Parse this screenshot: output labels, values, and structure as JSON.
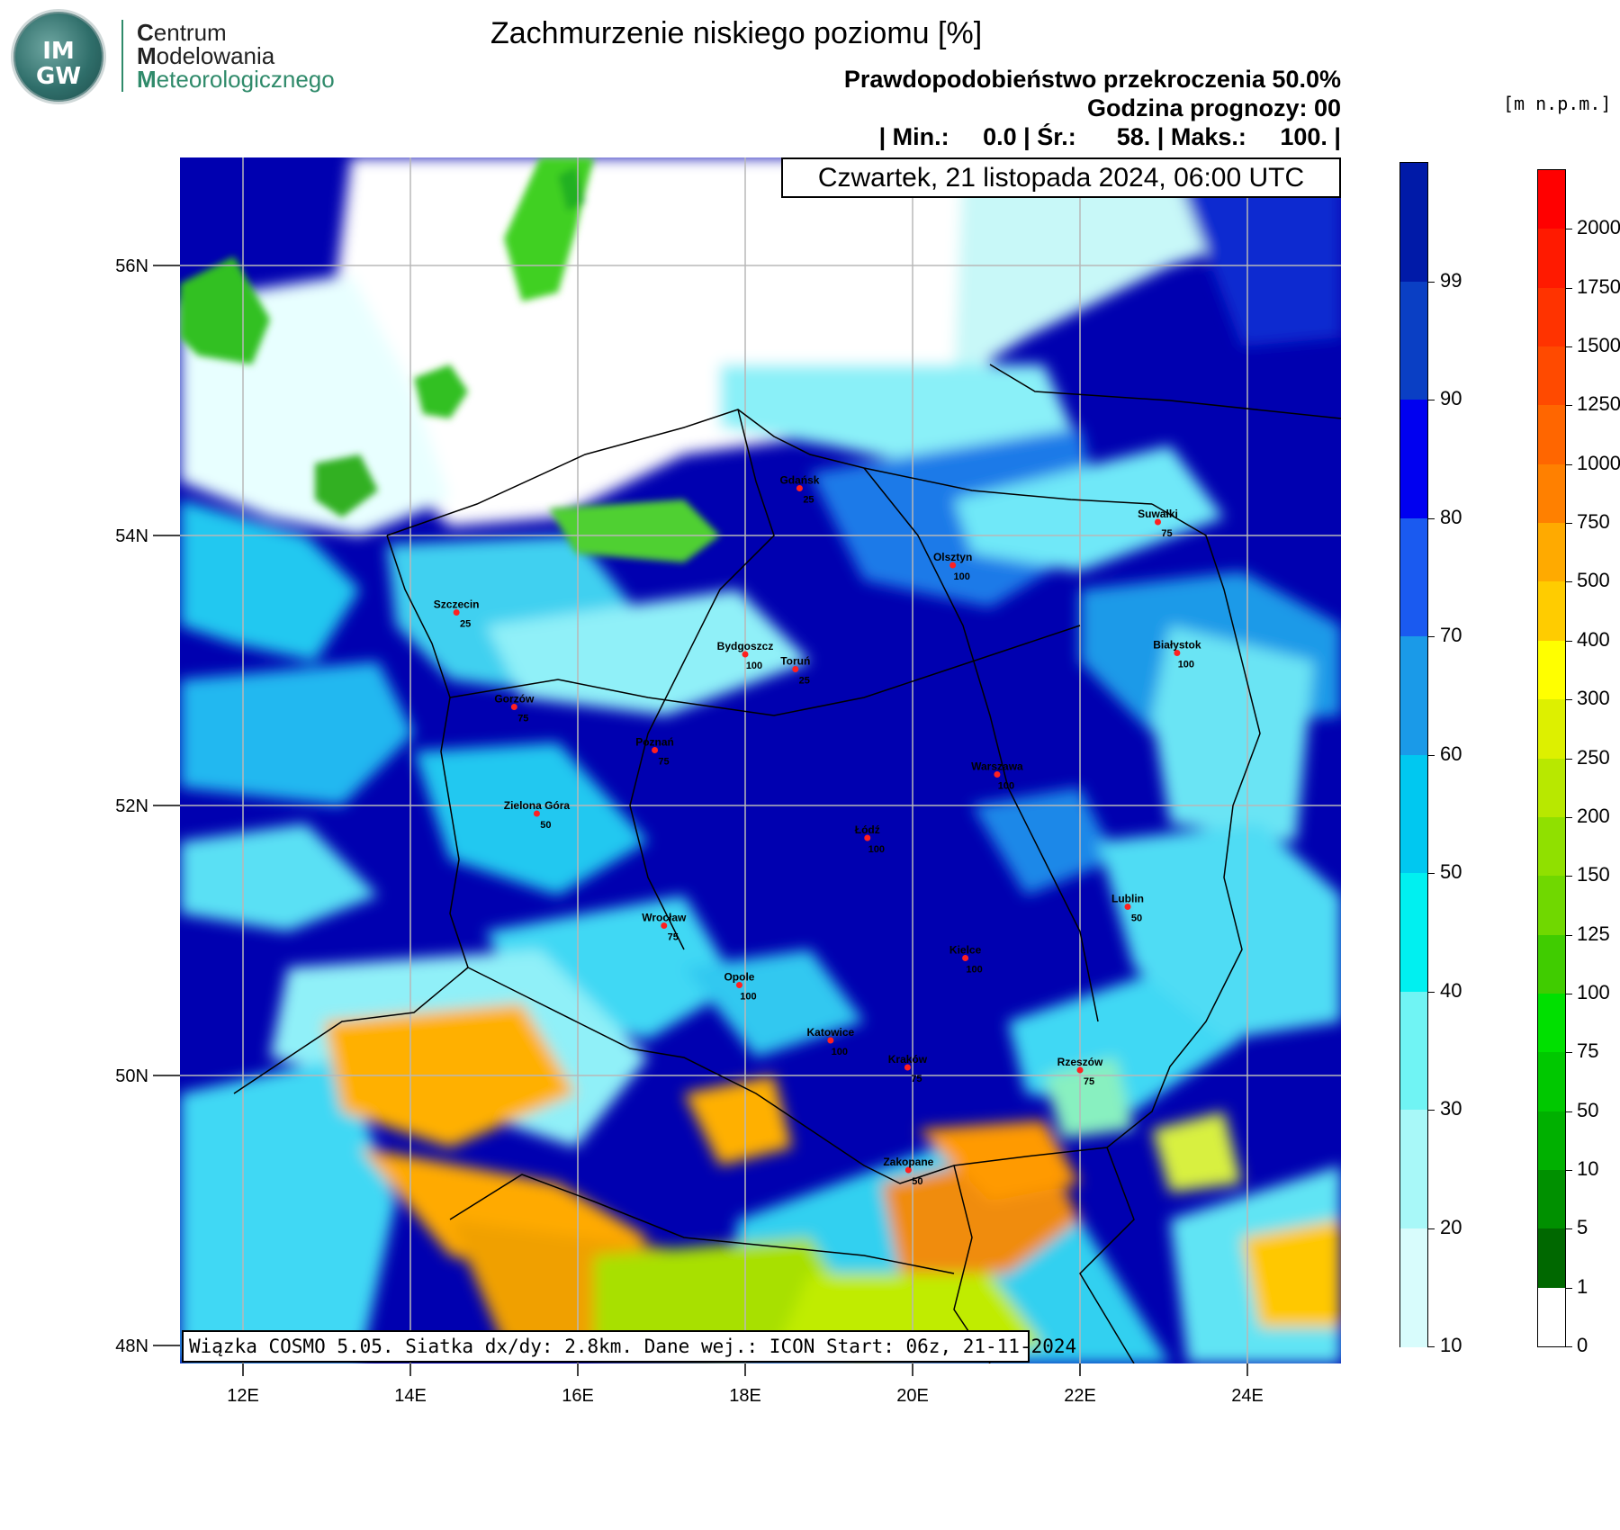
{
  "logo": {
    "abbr_top": "IM",
    "abbr_bottom": "GW",
    "line1_initial": "C",
    "line1_rest": "entrum",
    "line2_initial": "M",
    "line2_rest": "odelowania",
    "line3_initial": "M",
    "line3_rest": "eteorologicznego",
    "accent": "#2f8a6a"
  },
  "title": "Zachmurzenie niskiego poziomu [%]",
  "subtitle_probability": "Prawdopodobieństwo przekroczenia 50.0%",
  "subtitle_hour": "Godzina prognozy: 00",
  "stats": "| Min.:     0.0 | Śr.:      58. | Maks.:     100. |",
  "date_label": "Czwartek, 21 listopada 2024, 06:00 UTC",
  "footer": "Wiązka COSMO 5.05. Siatka dx/dy: 2.8km. Dane wej.: ICON Start: 06z, 21-11-2024",
  "units_label": "[m n.p.m.]",
  "lat_labels": [
    "56N",
    "54N",
    "52N",
    "50N",
    "48N"
  ],
  "lon_labels": [
    "12E",
    "14E",
    "16E",
    "18E",
    "20E",
    "22E",
    "24E"
  ],
  "cloud_colorbar": {
    "labels": [
      "99",
      "90",
      "80",
      "70",
      "60",
      "50",
      "40",
      "30",
      "20",
      "10"
    ],
    "colors": [
      "#001aa8",
      "#0a3fc4",
      "#0000f0",
      "#1a5af0",
      "#1a9ae8",
      "#00c8f0",
      "#00f0f0",
      "#70f4f4",
      "#a8f8f8",
      "#d8fcfc"
    ]
  },
  "terrain_colorbar": {
    "labels": [
      "2000",
      "1750",
      "1500",
      "1250",
      "1000",
      "750",
      "500",
      "400",
      "300",
      "250",
      "200",
      "150",
      "125",
      "100",
      "75",
      "50",
      "10",
      "5",
      "1",
      "0"
    ],
    "colors": [
      "#ff0000",
      "#ff1a00",
      "#ff3300",
      "#ff4a00",
      "#ff6600",
      "#ff8000",
      "#ffaa00",
      "#ffcc00",
      "#ffff00",
      "#ddf000",
      "#b8e800",
      "#90e000",
      "#70d800",
      "#40cc00",
      "#00e000",
      "#00c800",
      "#00b000",
      "#009000",
      "#006800",
      "#ffffff"
    ]
  },
  "cities": [
    {
      "name": "Gdańsk",
      "value": "25",
      "lon": 18.65,
      "lat": 54.35
    },
    {
      "name": "Suwałki",
      "value": "75",
      "lon": 22.93,
      "lat": 54.1
    },
    {
      "name": "Olsztyn",
      "value": "100",
      "lon": 20.48,
      "lat": 53.78
    },
    {
      "name": "Szczecin",
      "value": "25",
      "lon": 14.55,
      "lat": 53.43
    },
    {
      "name": "Bydgoszcz",
      "value": "100",
      "lon": 18.0,
      "lat": 53.12
    },
    {
      "name": "Toruń",
      "value": "25",
      "lon": 18.6,
      "lat": 53.01
    },
    {
      "name": "Białystok",
      "value": "100",
      "lon": 23.16,
      "lat": 53.13
    },
    {
      "name": "Gorzów",
      "value": "75",
      "lon": 15.24,
      "lat": 52.73
    },
    {
      "name": "Poznań",
      "value": "75",
      "lon": 16.92,
      "lat": 52.41
    },
    {
      "name": "Warszawa",
      "value": "100",
      "lon": 21.01,
      "lat": 52.23
    },
    {
      "name": "Zielona Góra",
      "value": "50",
      "lon": 15.51,
      "lat": 51.94
    },
    {
      "name": "Łódź",
      "value": "100",
      "lon": 19.46,
      "lat": 51.76
    },
    {
      "name": "Lublin",
      "value": "50",
      "lon": 22.57,
      "lat": 51.25
    },
    {
      "name": "Wrocław",
      "value": "75",
      "lon": 17.03,
      "lat": 51.11
    },
    {
      "name": "Kielce",
      "value": "100",
      "lon": 20.63,
      "lat": 50.87
    },
    {
      "name": "Opole",
      "value": "100",
      "lon": 17.93,
      "lat": 50.67
    },
    {
      "name": "Katowice",
      "value": "100",
      "lon": 19.02,
      "lat": 50.26
    },
    {
      "name": "Kraków",
      "value": "75",
      "lon": 19.94,
      "lat": 50.06
    },
    {
      "name": "Rzeszów",
      "value": "75",
      "lon": 22.0,
      "lat": 50.04
    },
    {
      "name": "Zakopane",
      "value": "50",
      "lon": 19.95,
      "lat": 49.3
    }
  ]
}
